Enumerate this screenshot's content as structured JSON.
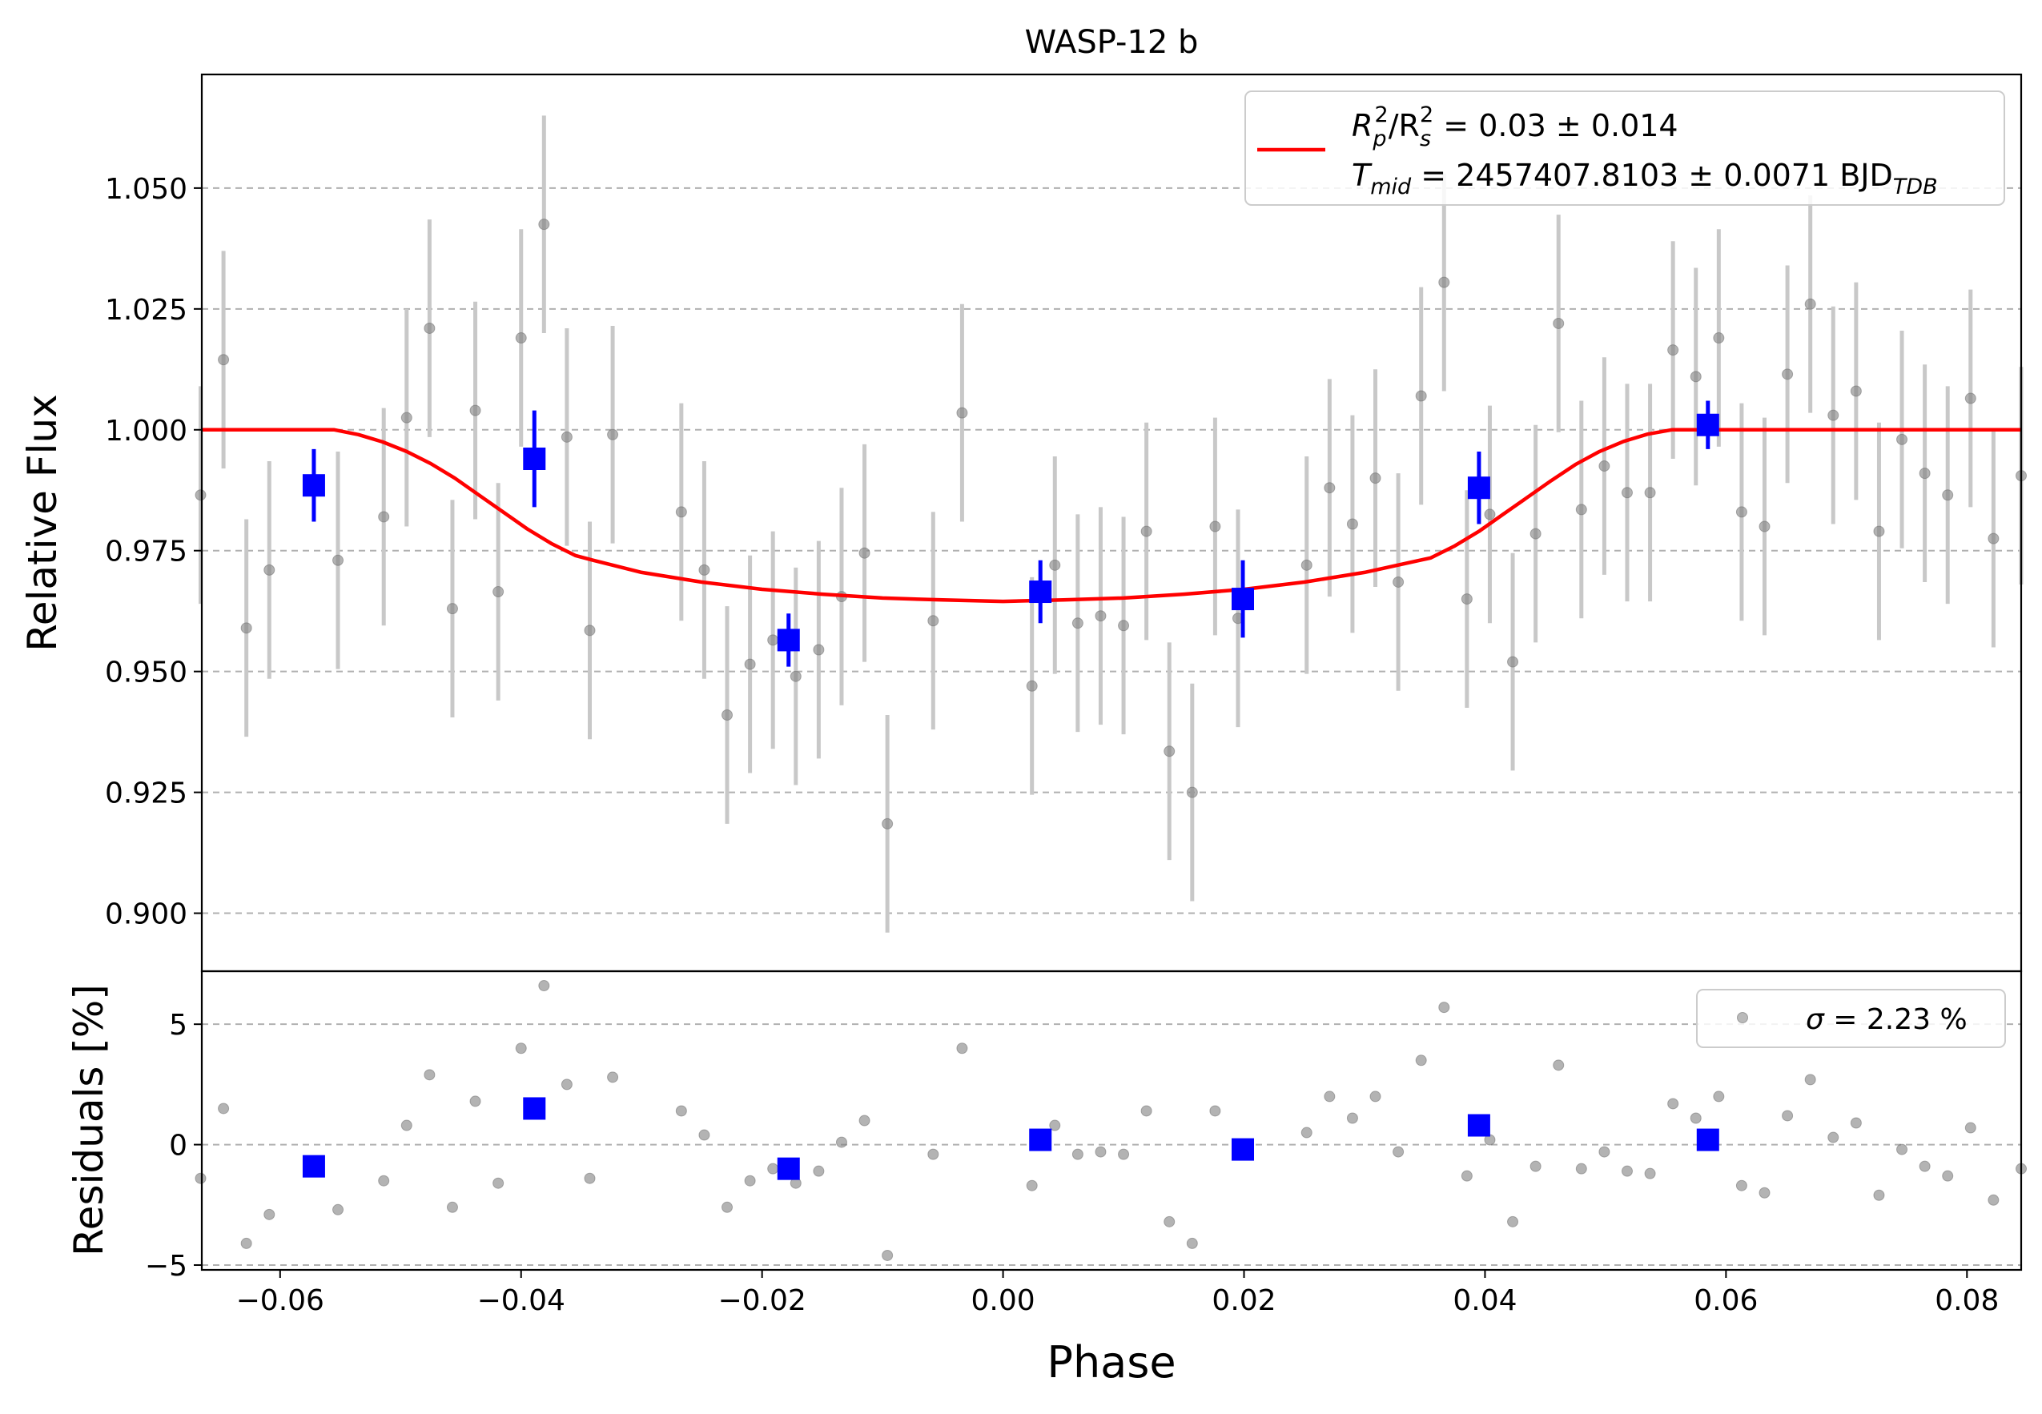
{
  "chart_data": [
    {
      "panel": "top",
      "type": "scatter",
      "title": "WASP-12 b",
      "xlabel": "",
      "ylabel": "Relative Flux",
      "xlim": [
        -0.0665,
        0.0845
      ],
      "ylim": [
        0.888,
        1.0735
      ],
      "yticks": [
        0.9,
        0.925,
        0.95,
        0.975,
        1.0,
        1.025,
        1.05
      ],
      "ytick_labels": [
        "0.900",
        "0.925",
        "0.950",
        "0.975",
        "1.000",
        "1.025",
        "1.050"
      ],
      "grid": "y-dashed",
      "legend_position": "top-right",
      "legend": {
        "line1": {
          "lhs": "R",
          "lhs_sub": "p",
          "lhs_sup": "2",
          "mid": "/R",
          "mid_sub": "s",
          "mid_sup": "2",
          "rhs": " = 0.03 ± 0.014"
        },
        "line2": {
          "lhs": "T",
          "lhs_sub": "mid",
          "rhs": " = 2457407.8103 ± 0.0071 BJD",
          "rhs_sub": "TDB"
        }
      },
      "colors": {
        "data": "#808080",
        "errorbar": "#c8c8c8",
        "binned": "#0000ff",
        "model": "#ff0000",
        "grid": "#b0b0b0"
      },
      "series": [
        {
          "kind": "data",
          "x": [
            -0.0666,
            -0.0647,
            -0.0628,
            -0.0609,
            -0.0552,
            -0.0514,
            -0.0495,
            -0.0476,
            -0.0457,
            -0.0438,
            -0.0419,
            -0.04,
            -0.0381,
            -0.0362,
            -0.0343,
            -0.0324,
            -0.0267,
            -0.0248,
            -0.0229,
            -0.021,
            -0.0191,
            -0.0172,
            -0.0153,
            -0.0134,
            -0.0115,
            -0.0096,
            -0.0058,
            -0.0034,
            0.0024,
            0.0043,
            0.0062,
            0.0081,
            0.01,
            0.0119,
            0.0138,
            0.0157,
            0.0176,
            0.0195,
            0.0252,
            0.0271,
            0.029,
            0.0309,
            0.0328,
            0.0347,
            0.0366,
            0.0385,
            0.0404,
            0.0423,
            0.0442,
            0.0461,
            0.048,
            0.0499,
            0.0518,
            0.0537,
            0.0556,
            0.0575,
            0.0594,
            0.0613,
            0.0632,
            0.0651,
            0.067,
            0.0689,
            0.0708,
            0.0727,
            0.0746,
            0.0765,
            0.0784,
            0.0803,
            0.0822,
            0.0845
          ],
          "y": [
            0.9865,
            1.0145,
            0.959,
            0.971,
            0.973,
            0.982,
            1.0025,
            1.021,
            0.963,
            1.004,
            0.9665,
            1.019,
            1.0425,
            0.9985,
            0.9585,
            0.999,
            0.983,
            0.971,
            0.941,
            0.9515,
            0.9565,
            0.949,
            0.9545,
            0.9655,
            0.9745,
            0.9185,
            0.9605,
            1.0035,
            0.947,
            0.972,
            0.96,
            0.9615,
            0.9595,
            0.979,
            0.9335,
            0.925,
            0.98,
            0.961,
            0.972,
            0.988,
            0.9805,
            0.99,
            0.9685,
            1.007,
            1.0305,
            0.965,
            0.9825,
            0.952,
            0.9785,
            1.022,
            0.9835,
            0.9925,
            0.987,
            0.987,
            1.0165,
            1.011,
            1.019,
            0.983,
            0.98,
            1.0115,
            1.026,
            1.003,
            1.008,
            0.979,
            0.998,
            0.991,
            0.9865,
            1.0065,
            0.9775,
            0.9905
          ],
          "yerr": 0.0225
        },
        {
          "kind": "binned",
          "x": [
            -0.0572,
            -0.0389,
            -0.0178,
            0.0031,
            0.0199,
            0.0395,
            0.0585
          ],
          "y": [
            0.9885,
            0.994,
            0.9565,
            0.9665,
            0.965,
            0.988,
            1.001
          ],
          "yerr": [
            0.0075,
            0.01,
            0.0055,
            0.0065,
            0.008,
            0.0075,
            0.005
          ]
        },
        {
          "kind": "model",
          "x": [
            -0.0665,
            -0.0555,
            -0.0535,
            -0.0515,
            -0.0495,
            -0.0475,
            -0.0455,
            -0.0435,
            -0.0415,
            -0.0395,
            -0.0375,
            -0.0355,
            -0.034,
            -0.03,
            -0.025,
            -0.02,
            -0.015,
            -0.01,
            -0.005,
            0.0,
            0.005,
            0.01,
            0.015,
            0.02,
            0.025,
            0.03,
            0.0355,
            0.0375,
            0.0395,
            0.0415,
            0.0435,
            0.0455,
            0.0475,
            0.0495,
            0.0515,
            0.0535,
            0.0555,
            0.0845
          ],
          "y": [
            1.0,
            1.0,
            0.999,
            0.9975,
            0.9955,
            0.993,
            0.99,
            0.9865,
            0.983,
            0.9795,
            0.9765,
            0.974,
            0.973,
            0.9705,
            0.9685,
            0.967,
            0.966,
            0.9652,
            0.9648,
            0.9645,
            0.9648,
            0.9652,
            0.966,
            0.967,
            0.9685,
            0.9705,
            0.9735,
            0.976,
            0.979,
            0.9825,
            0.986,
            0.9895,
            0.9928,
            0.9955,
            0.9976,
            0.9991,
            1.0,
            1.0
          ]
        }
      ]
    },
    {
      "panel": "bottom",
      "type": "scatter",
      "xlabel": "Phase",
      "ylabel": "Residuals [%]",
      "xlim": [
        -0.0665,
        0.0845
      ],
      "ylim": [
        -5.2,
        7.2
      ],
      "yticks": [
        -5,
        0,
        5
      ],
      "ytick_labels": [
        "−5",
        "0",
        "5"
      ],
      "xticks": [
        -0.06,
        -0.04,
        -0.02,
        0.0,
        0.02,
        0.04,
        0.06,
        0.08
      ],
      "xtick_labels": [
        "−0.06",
        "−0.04",
        "−0.02",
        "0.00",
        "0.02",
        "0.04",
        "0.06",
        "0.08"
      ],
      "grid": "y-dashed",
      "legend_position": "top-right",
      "legend": {
        "sym": "σ",
        "text": " = 2.23 %"
      },
      "series": [
        {
          "kind": "residuals",
          "x": [
            -0.0666,
            -0.0647,
            -0.0628,
            -0.0609,
            -0.0552,
            -0.0514,
            -0.0495,
            -0.0476,
            -0.0457,
            -0.0438,
            -0.0419,
            -0.04,
            -0.0381,
            -0.0362,
            -0.0343,
            -0.0324,
            -0.0267,
            -0.0248,
            -0.0229,
            -0.021,
            -0.0191,
            -0.0172,
            -0.0153,
            -0.0134,
            -0.0115,
            -0.0096,
            -0.0058,
            -0.0034,
            0.0024,
            0.0043,
            0.0062,
            0.0081,
            0.01,
            0.0119,
            0.0138,
            0.0157,
            0.0176,
            0.0195,
            0.0252,
            0.0271,
            0.029,
            0.0309,
            0.0328,
            0.0347,
            0.0366,
            0.0385,
            0.0404,
            0.0423,
            0.0442,
            0.0461,
            0.048,
            0.0499,
            0.0518,
            0.0537,
            0.0556,
            0.0575,
            0.0594,
            0.0613,
            0.0632,
            0.0651,
            0.067,
            0.0689,
            0.0708,
            0.0727,
            0.0746,
            0.0765,
            0.0784,
            0.0803,
            0.0822,
            0.0845
          ],
          "y": [
            -1.4,
            1.5,
            -4.1,
            -2.9,
            -2.7,
            -1.5,
            0.8,
            2.9,
            -2.6,
            1.8,
            -1.6,
            4.0,
            6.6,
            2.5,
            -1.4,
            2.8,
            1.4,
            0.4,
            -2.6,
            -1.5,
            -1.0,
            -1.6,
            -1.1,
            0.1,
            1.0,
            -4.6,
            -0.4,
            4.0,
            -1.7,
            0.8,
            -0.4,
            -0.3,
            -0.4,
            1.4,
            -3.2,
            -4.1,
            1.4,
            -0.1,
            0.5,
            2.0,
            1.1,
            2.0,
            -0.3,
            3.5,
            5.7,
            -1.3,
            0.2,
            -3.2,
            -0.9,
            3.3,
            -1.0,
            -0.3,
            -1.1,
            -1.2,
            1.7,
            1.1,
            2.0,
            -1.7,
            -2.0,
            1.2,
            2.7,
            0.3,
            0.9,
            -2.1,
            -0.2,
            -0.9,
            -1.3,
            0.7,
            -2.3,
            -1.0
          ]
        },
        {
          "kind": "binned",
          "x": [
            -0.0572,
            -0.0389,
            -0.0178,
            0.0031,
            0.0199,
            0.0395,
            0.0585
          ],
          "y": [
            -0.9,
            1.5,
            -1.0,
            0.2,
            -0.2,
            0.8,
            0.2
          ]
        }
      ]
    }
  ]
}
